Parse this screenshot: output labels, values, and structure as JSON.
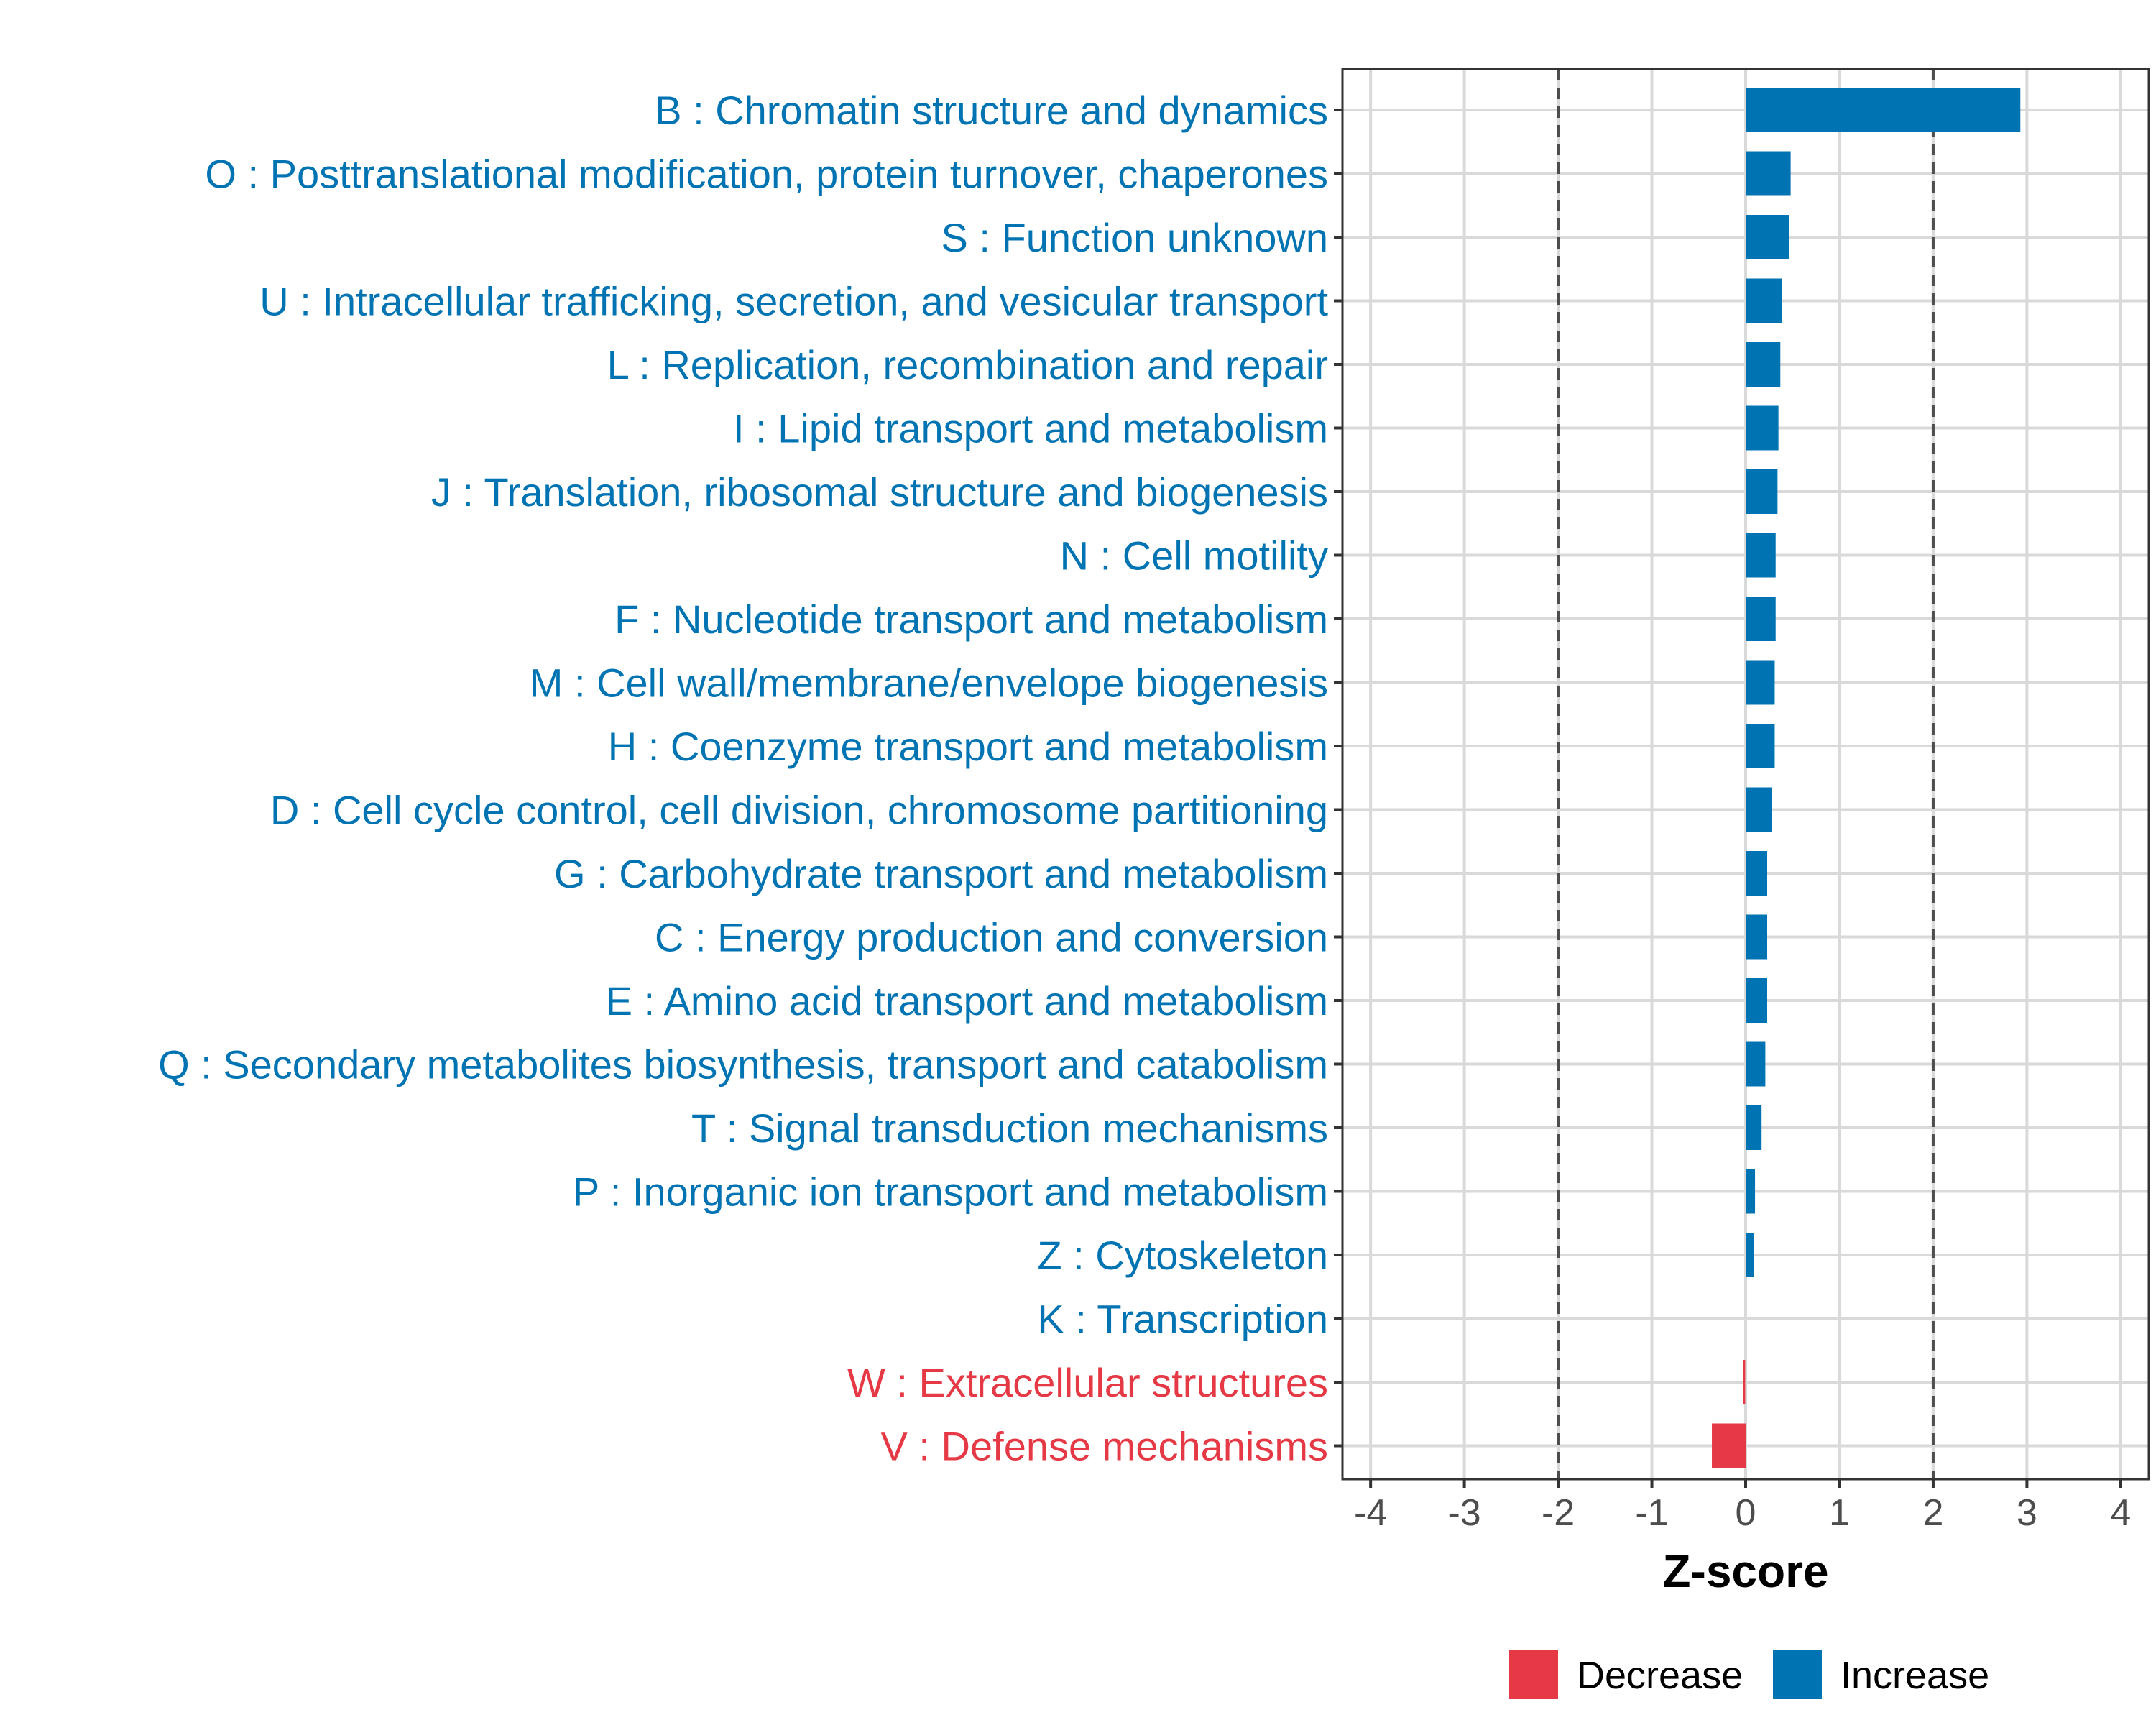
{
  "colors": {
    "increase": "#0073B3",
    "decrease": "#E63946",
    "grid": "#d9d9d9",
    "threshold": "#4d4d4d",
    "panel_border": "#333333"
  },
  "chart_data": {
    "type": "bar",
    "orientation": "horizontal",
    "xlabel": "Z-score",
    "xlim": [
      -4.3,
      4.3
    ],
    "xticks": [
      -4,
      -3,
      -2,
      -1,
      0,
      1,
      2,
      3,
      4
    ],
    "threshold_lines": [
      -2,
      2
    ],
    "grid": true,
    "legend_position": "bottom",
    "legend": [
      {
        "name": "Decrease",
        "color": "#E63946"
      },
      {
        "name": "Increase",
        "color": "#0073B3"
      }
    ],
    "categories": [
      "B : Chromatin structure and dynamics",
      "O : Posttranslational modification, protein turnover, chaperones",
      "S : Function unknown",
      "U : Intracellular trafficking, secretion, and vesicular transport",
      "L : Replication, recombination and repair",
      "I : Lipid transport and metabolism",
      "J : Translation, ribosomal structure and biogenesis",
      "N : Cell motility",
      "F : Nucleotide transport and metabolism",
      "M : Cell wall/membrane/envelope biogenesis",
      "H : Coenzyme transport and metabolism",
      "D : Cell cycle control, cell division, chromosome partitioning",
      "G : Carbohydrate transport and metabolism",
      "C : Energy production and conversion",
      "E : Amino acid transport and metabolism",
      "Q : Secondary metabolites biosynthesis, transport and catabolism",
      "T : Signal transduction mechanisms",
      "P : Inorganic ion transport and metabolism",
      "Z : Cytoskeleton",
      "K : Transcription",
      "W : Extracellular structures",
      "V : Defense mechanisms"
    ],
    "values": [
      2.93,
      0.48,
      0.46,
      0.39,
      0.37,
      0.35,
      0.34,
      0.32,
      0.32,
      0.31,
      0.31,
      0.28,
      0.23,
      0.23,
      0.23,
      0.21,
      0.17,
      0.1,
      0.09,
      0.0,
      -0.02,
      -0.36
    ],
    "direction": [
      "Increase",
      "Increase",
      "Increase",
      "Increase",
      "Increase",
      "Increase",
      "Increase",
      "Increase",
      "Increase",
      "Increase",
      "Increase",
      "Increase",
      "Increase",
      "Increase",
      "Increase",
      "Increase",
      "Increase",
      "Increase",
      "Increase",
      "Increase",
      "Decrease",
      "Decrease"
    ]
  }
}
